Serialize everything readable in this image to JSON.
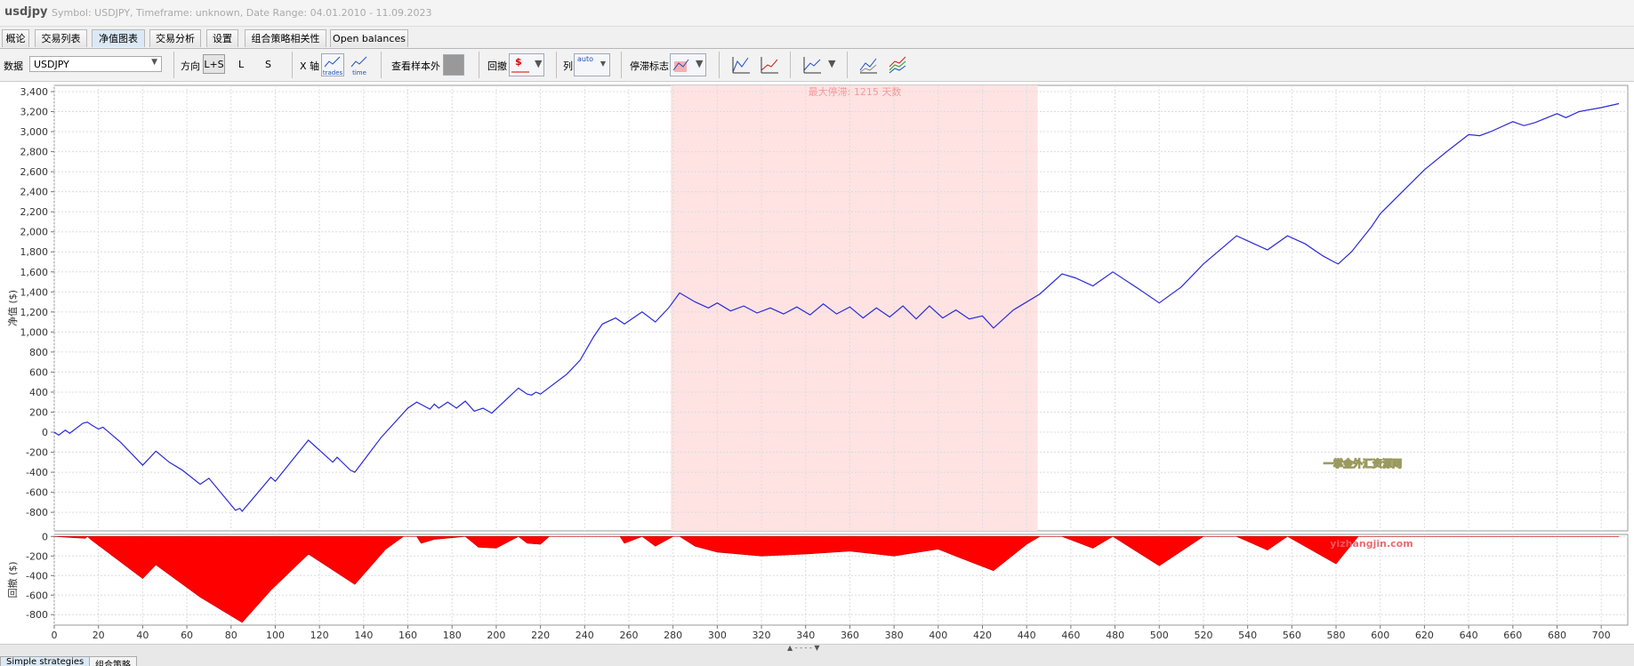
{
  "header": {
    "title": "usdjpy",
    "subtitle": "Symbol: USDJPY, Timeframe: unknown, Date Range: 04.01.2010 - 11.09.2023"
  },
  "tabs": [
    "概论",
    "交易列表",
    "净值图表",
    "交易分析",
    "设置",
    "组合策略相关性",
    "Open balances"
  ],
  "toolbar": {
    "data_label": "数据",
    "data_value": "USDJPY",
    "direction_label": "方向",
    "directions": [
      "L+S",
      "L",
      "S"
    ],
    "xaxis_label": "X 轴",
    "xaxis_options": [
      "trades",
      "time"
    ],
    "oos_label": "查看样本外",
    "drawdown_label": "回撤",
    "column_label": "列",
    "column_option": "auto",
    "stagnation_label": "停滞标志"
  },
  "chart_data": [
    {
      "type": "line",
      "ylabel": "净值 ($)",
      "annotation": "最大停滞: 1215 天数",
      "color": "#2a2ad8",
      "highlight": {
        "x": [
          279,
          445
        ],
        "color": "#ffe3e3"
      },
      "xlim": [
        0,
        712
      ],
      "ylim": [
        -985,
        3462
      ],
      "yticks": [
        {
          "value": 3400,
          "label": "3,400"
        },
        {
          "value": 3200,
          "label": "3,200"
        },
        {
          "value": 3000,
          "label": "3,000"
        },
        {
          "value": 2800,
          "label": "2,800"
        },
        {
          "value": 2600,
          "label": "2,600"
        },
        {
          "value": 2400,
          "label": "2,400"
        },
        {
          "value": 2200,
          "label": "2,200"
        },
        {
          "value": 2000,
          "label": "2,000"
        },
        {
          "value": 1800,
          "label": "1,800"
        },
        {
          "value": 1600,
          "label": "1,600"
        },
        {
          "value": 1400,
          "label": "1,400"
        },
        {
          "value": 1200,
          "label": "1,200"
        },
        {
          "value": 1000,
          "label": "1,000"
        },
        800,
        600,
        400,
        200,
        0,
        -200,
        -400,
        -600,
        -800
      ],
      "grid": true,
      "x": [
        0,
        2,
        5,
        7,
        13,
        15,
        17,
        20,
        22,
        30,
        40,
        46,
        52,
        58,
        66,
        70,
        82,
        84,
        85,
        98,
        100,
        115,
        126,
        128,
        134,
        136,
        148,
        160,
        164,
        170,
        172,
        174,
        178,
        182,
        186,
        190,
        194,
        198,
        210,
        214,
        216,
        218,
        220,
        232,
        238,
        244,
        248,
        254,
        258,
        266,
        272,
        278,
        283,
        290,
        296,
        300,
        306,
        312,
        318,
        324,
        330,
        336,
        342,
        348,
        354,
        360,
        366,
        372,
        378,
        384,
        390,
        396,
        402,
        408,
        414,
        420,
        425,
        434,
        446,
        456,
        462,
        470,
        479,
        490,
        500,
        510,
        520,
        535,
        549,
        558,
        566,
        574,
        579,
        581,
        587,
        596,
        600,
        610,
        620,
        630,
        640,
        645,
        650,
        660,
        665,
        670,
        680,
        684,
        690,
        700,
        708
      ],
      "values": [
        0,
        -30,
        20,
        -10,
        90,
        100,
        70,
        30,
        50,
        -100,
        -330,
        -190,
        -300,
        -380,
        -520,
        -460,
        -780,
        -760,
        -790,
        -450,
        -490,
        -80,
        -300,
        -250,
        -380,
        -400,
        -50,
        240,
        300,
        230,
        280,
        240,
        300,
        240,
        310,
        210,
        240,
        190,
        440,
        380,
        370,
        400,
        380,
        580,
        720,
        950,
        1080,
        1140,
        1080,
        1200,
        1100,
        1240,
        1390,
        1300,
        1240,
        1290,
        1210,
        1260,
        1190,
        1240,
        1180,
        1250,
        1170,
        1280,
        1180,
        1250,
        1140,
        1240,
        1150,
        1260,
        1130,
        1260,
        1140,
        1220,
        1130,
        1160,
        1040,
        1220,
        1380,
        1580,
        1540,
        1460,
        1600,
        1440,
        1290,
        1450,
        1680,
        1960,
        1820,
        1960,
        1880,
        1760,
        1700,
        1680,
        1800,
        2050,
        2180,
        2400,
        2620,
        2800,
        2970,
        2960,
        3000,
        3100,
        3060,
        3090,
        3180,
        3140,
        3200,
        3240,
        3280
      ]
    },
    {
      "type": "area",
      "ylabel": "回撤 ($)",
      "color": "#ff0000",
      "xlim": [
        0,
        712
      ],
      "ylim": [
        -907,
        21
      ],
      "xticks": [
        0,
        20,
        40,
        60,
        80,
        100,
        120,
        140,
        160,
        180,
        200,
        220,
        240,
        260,
        280,
        300,
        320,
        340,
        360,
        380,
        400,
        420,
        440,
        460,
        480,
        500,
        520,
        540,
        560,
        580,
        600,
        620,
        640,
        660,
        680,
        700
      ],
      "yticks": [
        0,
        -200,
        -400,
        -600,
        -800
      ],
      "grid": true,
      "x": [
        0,
        14,
        15,
        17,
        40,
        46,
        66,
        85,
        98,
        115,
        136,
        150,
        158,
        164,
        166,
        172,
        186,
        192,
        200,
        210,
        214,
        220,
        224,
        256,
        258,
        266,
        272,
        280,
        283,
        290,
        300,
        320,
        340,
        360,
        380,
        400,
        410,
        425,
        440,
        446,
        456,
        470,
        479,
        500,
        520,
        535,
        549,
        558,
        580,
        590,
        700,
        708
      ],
      "values": [
        0,
        -20,
        0,
        -40,
        -430,
        -290,
        -620,
        -880,
        -550,
        -180,
        -490,
        -130,
        0,
        0,
        -70,
        -30,
        0,
        -110,
        -120,
        0,
        -70,
        -80,
        0,
        0,
        -70,
        0,
        -100,
        0,
        0,
        -100,
        -160,
        -200,
        -180,
        -150,
        -200,
        -130,
        -220,
        -350,
        -80,
        0,
        0,
        -120,
        0,
        -300,
        0,
        0,
        -140,
        0,
        -280,
        0,
        0,
        0
      ]
    }
  ],
  "watermark": [
    "一掌金外汇资源网",
    "yizhangjin.com"
  ],
  "bottom_tabs": [
    "Simple strategies",
    "组合策略"
  ]
}
